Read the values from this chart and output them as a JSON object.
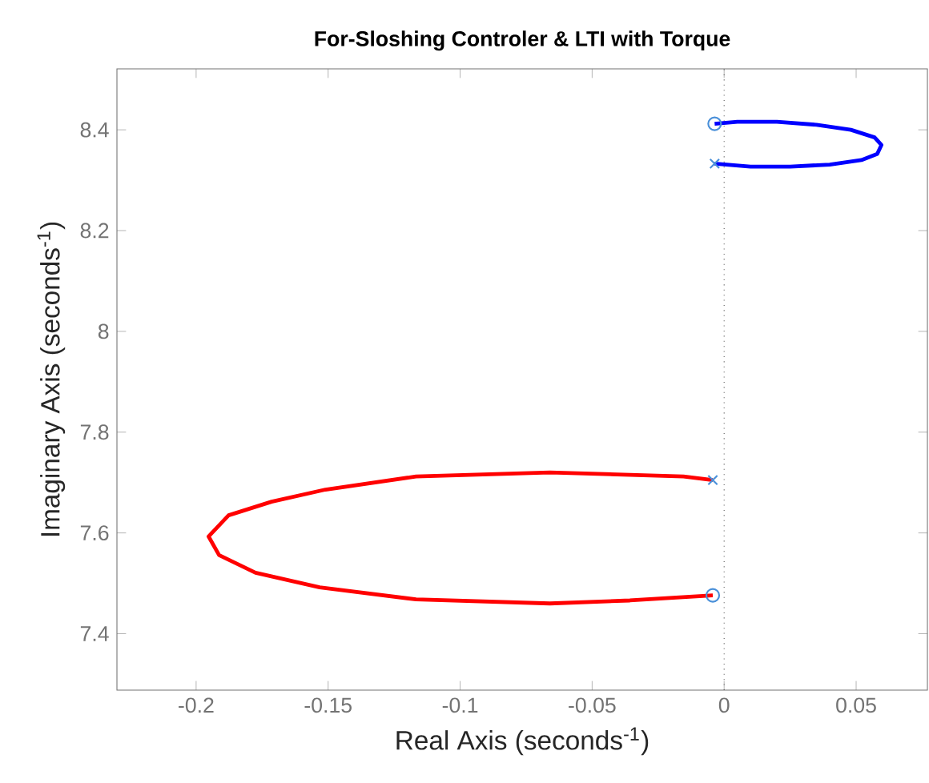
{
  "chart_data": {
    "type": "line",
    "title": "For-Sloshing Controler & LTI with Torque",
    "xlabel": "Real Axis (seconds$^{-1}$)",
    "ylabel": "Imaginary Axis (seconds$^{-1}$)",
    "xlim": [
      -0.23,
      0.077
    ],
    "ylim": [
      7.288,
      8.521
    ],
    "xticks": [
      -0.2,
      -0.15,
      -0.1,
      -0.05,
      0,
      0.05
    ],
    "yticks": [
      7.4,
      7.6,
      7.8,
      8,
      8.2,
      8.4
    ],
    "marker": "none",
    "line_style": "solid",
    "ref_lines": [
      {
        "axis": "x",
        "value": 0,
        "color": "#555555",
        "line_style": "dotted"
      }
    ],
    "series": [
      {
        "color": "#0000ff",
        "x": [
          -0.0036,
          0.01,
          0.025,
          0.04,
          0.052,
          0.058,
          0.0596,
          0.057,
          0.048,
          0.035,
          0.02,
          0.005,
          -0.0036
        ],
        "values": [
          8.333,
          8.327,
          8.327,
          8.331,
          8.34,
          8.352,
          8.37,
          8.385,
          8.4,
          8.41,
          8.416,
          8.416,
          8.412
        ]
      },
      {
        "color": "#ff0000",
        "x": [
          -0.0043,
          -0.0154,
          -0.066,
          -0.1167,
          -0.151,
          -0.1714,
          -0.1877,
          -0.1953,
          -0.1913,
          -0.1775,
          -0.1532,
          -0.1167,
          -0.066,
          -0.0357,
          -0.0043
        ],
        "values": [
          7.705,
          7.712,
          7.72,
          7.712,
          7.686,
          7.662,
          7.635,
          7.593,
          7.556,
          7.521,
          7.492,
          7.468,
          7.46,
          7.466,
          7.476
        ]
      },
      {
        "type": "scatter",
        "marker": "cross",
        "color": "#4a90d9",
        "x": [
          -0.0036,
          -0.0043
        ],
        "values": [
          8.333,
          7.705
        ]
      },
      {
        "type": "scatter",
        "marker": "circle",
        "color": "#4a90d9",
        "x": [
          -0.0036,
          -0.0043
        ],
        "values": [
          8.412,
          7.476
        ]
      }
    ]
  }
}
